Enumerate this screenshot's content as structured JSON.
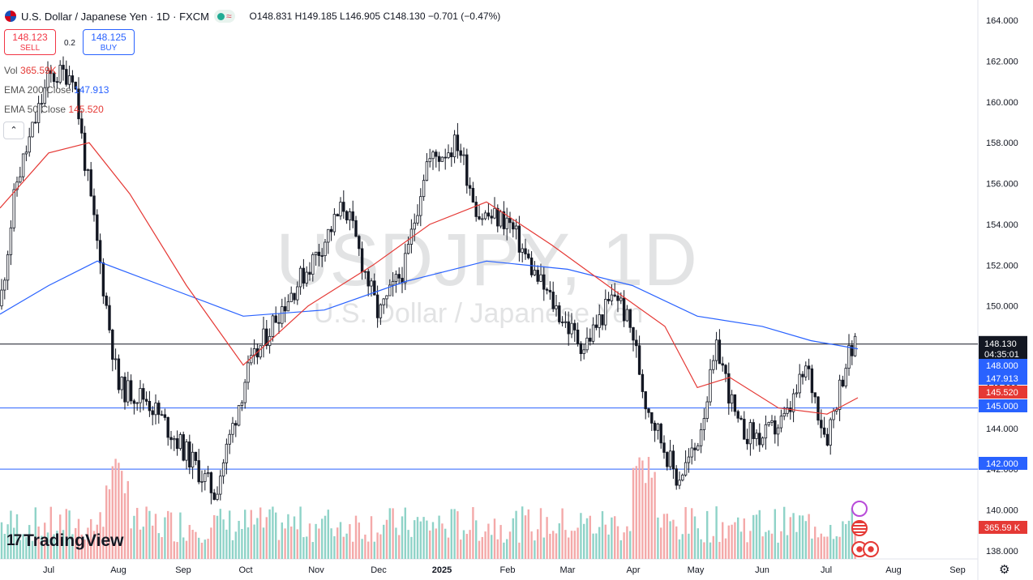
{
  "header": {
    "title": "U.S. Dollar / Japanese Yen · 1D · FXCM",
    "approx_symbol": "≈",
    "ohlc": {
      "o": "148.831",
      "h": "149.185",
      "l": "146.905",
      "c": "148.130",
      "change": "−0.701 (−0.47%)"
    },
    "ohlc_labels": {
      "o": "O",
      "h": "H",
      "l": "L",
      "c": "C"
    }
  },
  "trade": {
    "sell_price": "148.123",
    "sell_label": "SELL",
    "buy_price": "148.125",
    "buy_label": "BUY",
    "spread": "0.2"
  },
  "legend": {
    "vol_label": "Vol",
    "vol_value": "365.59K",
    "ema200_label": "EMA 200 Close",
    "ema200_value": "147.913",
    "ema50_label": "EMA 50 Close",
    "ema50_value": "145.520"
  },
  "collapse_symbol": "⌃",
  "watermark": {
    "symbol": "USDJPY, 1D",
    "name": "U.S. Dollar / Japanese Yen"
  },
  "logo_text": "TradingView",
  "colors": {
    "up": "#131722",
    "down": "#131722",
    "ema200": "#2962ff",
    "ema50": "#e53935",
    "vol_up": "#8fd3c8",
    "vol_down": "#f4a9a9",
    "price_tag": "#131722",
    "level_tag": "#2962ff",
    "ema50_tag": "#e53935"
  },
  "chart_data": {
    "type": "candlestick",
    "instrument": "USDJPY",
    "timeframe": "1D",
    "y_axis": {
      "ticks": [
        "138.000",
        "140.000",
        "142.000",
        "144.000",
        "146.000",
        "148.000",
        "150.000",
        "152.000",
        "154.000",
        "156.000",
        "158.000",
        "160.000",
        "162.000",
        "164.000"
      ],
      "range": [
        137.6,
        164.6
      ]
    },
    "x_axis": {
      "ticks": [
        "Jul",
        "Aug",
        "Sep",
        "Oct",
        "Nov",
        "Dec",
        "2025",
        "Feb",
        "Mar",
        "Apr",
        "May",
        "Jun",
        "Jul",
        "Aug",
        "Sep"
      ]
    },
    "close_series_approx": [
      {
        "x": "Jul",
        "y": 161.5
      },
      {
        "x": "Aug",
        "y": 146.0
      },
      {
        "x": "Sep",
        "y": 142.0
      },
      {
        "x": "Oct",
        "y": 146.5
      },
      {
        "x": "Nov",
        "y": 152.5
      },
      {
        "x": "Dec",
        "y": 150.0
      },
      {
        "x": "2025",
        "y": 157.5
      },
      {
        "x": "Feb",
        "y": 154.5
      },
      {
        "x": "Mar",
        "y": 149.0
      },
      {
        "x": "Apr",
        "y": 146.0
      },
      {
        "x": "May",
        "y": 144.0
      },
      {
        "x": "Jun",
        "y": 144.0
      },
      {
        "x": "Jul",
        "y": 146.5
      }
    ],
    "last": {
      "price": "148.130",
      "countdown": "04:35:01"
    },
    "horizontal_levels": [
      "148.130",
      "145.000",
      "142.000"
    ],
    "axis_tags": [
      {
        "value": "148.000",
        "kind": "level"
      },
      {
        "value": "147.913",
        "kind": "ema200"
      },
      {
        "value": "145.520",
        "kind": "ema50"
      },
      {
        "value": "145.000",
        "kind": "level"
      },
      {
        "value": "142.000",
        "kind": "level"
      }
    ],
    "volume_tag": "365.59 K",
    "indicators": [
      "EMA 200 Close",
      "EMA 50 Close",
      "Vol"
    ]
  }
}
